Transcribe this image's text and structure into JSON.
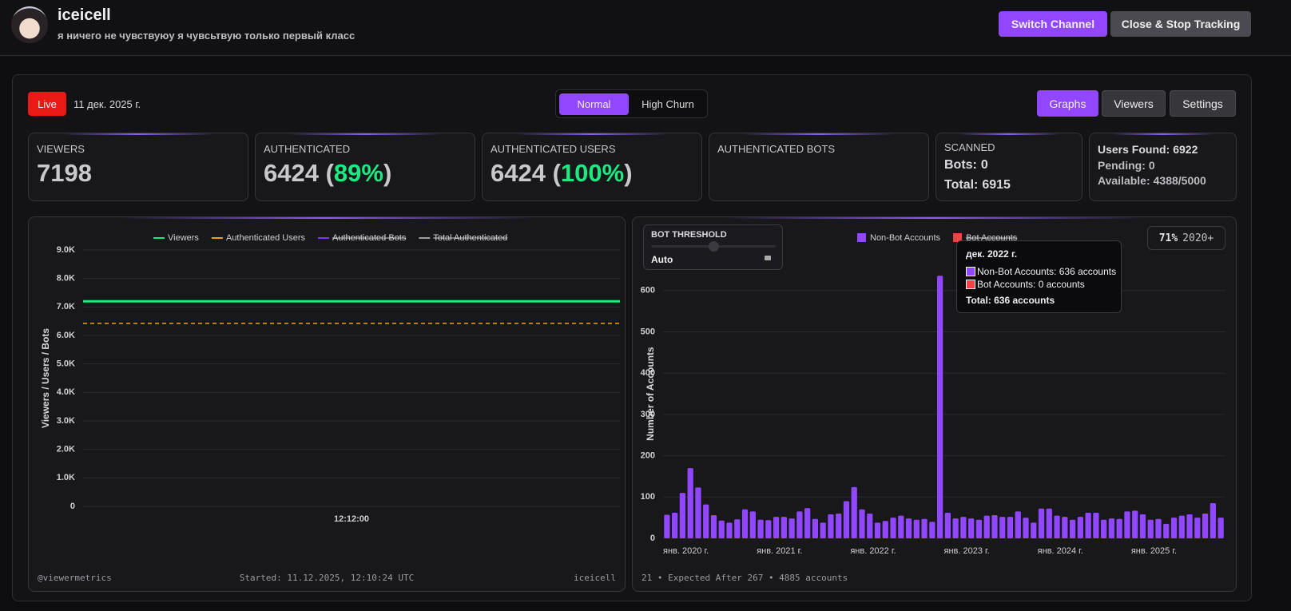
{
  "header": {
    "channel_name": "iceicell",
    "status_text": "я ничего не чувствуюу я чувсьтвую только первый класс",
    "buttons": [
      "Switch Channel",
      "Close & Stop Tracking"
    ]
  },
  "toolbar": {
    "live": "Live",
    "date": "11 дек. 2025 г.",
    "modes": [
      "Normal",
      "High Churn"
    ],
    "views": [
      "Graphs",
      "Viewers",
      "Settings"
    ]
  },
  "stats": {
    "viewers": {
      "label": "VIEWERS",
      "value": 7198
    },
    "authenticated": {
      "label": "AUTHENTICATED",
      "value": 6424,
      "paren_open": "(",
      "percent": "89%",
      "paren_close": ")"
    },
    "authenticated_users": {
      "label": "AUTHENTICATED USERS",
      "value": 6424,
      "paren_open": "(",
      "percent": "100%",
      "paren_close": ")"
    },
    "authenticated_bots": {
      "label": "AUTHENTICATED BOTS"
    },
    "scanned": {
      "label": "SCANNED",
      "items": [
        {
          "label": "Bots:",
          "value": 0
        },
        {
          "label": "Total:",
          "value": 6915
        }
      ]
    },
    "capacity": {
      "items": [
        {
          "label": "Users Found:",
          "value": 6922
        },
        {
          "label": "Pending:",
          "value": 0
        },
        {
          "label": "Available:",
          "value": "4388/5000"
        }
      ]
    }
  },
  "chart_data": [
    {
      "type": "line",
      "y_label": "Viewers / Users / Bots",
      "categories": [
        null,
        "12:12:00",
        null
      ],
      "series": [
        {
          "name": "Viewers",
          "color": "#1de982",
          "values": [
            7198,
            7198,
            7198
          ]
        },
        {
          "name": "Authenticated Users",
          "color": "#f0a020",
          "dashed": true,
          "values": [
            6424,
            6424,
            6424
          ]
        },
        {
          "name": "Authenticated Bots",
          "color": "#7c3aed",
          "hidden": true
        },
        {
          "name": "Total Authenticated",
          "color": "#9e9e9e",
          "hidden": true
        }
      ],
      "ylim": [
        0,
        9000
      ],
      "yticks": [
        0,
        {
          "value": 1000,
          "label": "1.0K"
        },
        {
          "value": 2000,
          "label": "2.0K"
        },
        {
          "value": 3000,
          "label": "3.0K"
        },
        {
          "value": 4000,
          "label": "4.0K"
        },
        {
          "value": 5000,
          "label": "5.0K"
        },
        {
          "value": 6000,
          "label": "6.0K"
        },
        {
          "value": 7000,
          "label": "7.0K"
        },
        {
          "value": 8000,
          "label": "8.0K"
        },
        {
          "value": 9000,
          "label": "9.0K"
        }
      ],
      "grid": true,
      "legend": "top",
      "footer": {
        "left": "@viewermetrics",
        "center": "Started: 11.12.2025, 12:10:24 UTC",
        "right": "iceicell"
      }
    },
    {
      "type": "bar",
      "y_label": "Number of Accounts",
      "categories": [
        "янв. 2020 г.",
        null,
        null,
        null,
        null,
        null,
        null,
        null,
        null,
        null,
        null,
        null,
        "янв. 2021 г.",
        null,
        null,
        null,
        null,
        null,
        null,
        null,
        null,
        null,
        null,
        null,
        "янв. 2022 г.",
        null,
        null,
        null,
        null,
        null,
        null,
        null,
        null,
        null,
        null,
        null,
        "янв. 2023 г.",
        null,
        null,
        null,
        null,
        null,
        null,
        null,
        null,
        null,
        null,
        null,
        "янв. 2024 г.",
        null,
        null,
        null,
        null,
        null,
        null,
        null,
        null,
        null,
        null,
        null,
        "янв. 2025 г.",
        null,
        null,
        null,
        null,
        null,
        null,
        null,
        null,
        null,
        null,
        null
      ],
      "series": [
        {
          "name": "Non-Bot Accounts",
          "color": "#9147ff",
          "values": [
            57,
            62,
            110,
            170,
            123,
            82,
            56,
            43,
            38,
            46,
            70,
            65,
            45,
            44,
            52,
            52,
            48,
            65,
            73,
            47,
            38,
            58,
            60,
            90,
            124,
            70,
            60,
            38,
            42,
            50,
            55,
            48,
            45,
            47,
            40,
            636,
            62,
            48,
            52,
            48,
            45,
            55,
            56,
            52,
            52,
            65,
            50,
            38,
            72,
            72,
            55,
            52,
            45,
            52,
            62,
            62,
            45,
            48,
            47,
            65,
            67,
            58,
            45,
            47,
            35,
            50,
            55,
            58,
            50,
            60,
            85,
            50
          ]
        },
        {
          "name": "Bot Accounts",
          "color": "#ef4444",
          "hidden": true
        }
      ],
      "ylim": [
        0,
        700
      ],
      "yticks": [
        0,
        100,
        200,
        300,
        400,
        500,
        600
      ],
      "grid": true,
      "legend": "top",
      "threshold": {
        "title": "BOT THRESHOLD",
        "mode": "Auto"
      },
      "badge": {
        "percent": "71%",
        "since": "2020+"
      },
      "tooltip": {
        "title": "дек. 2022 г.",
        "lines": [
          "Non-Bot Accounts: 636 accounts",
          "Bot Accounts: 0 accounts"
        ],
        "total": "Total: 636 accounts"
      },
      "footer": "21 • Expected After 267 • 4885 accounts"
    }
  ]
}
